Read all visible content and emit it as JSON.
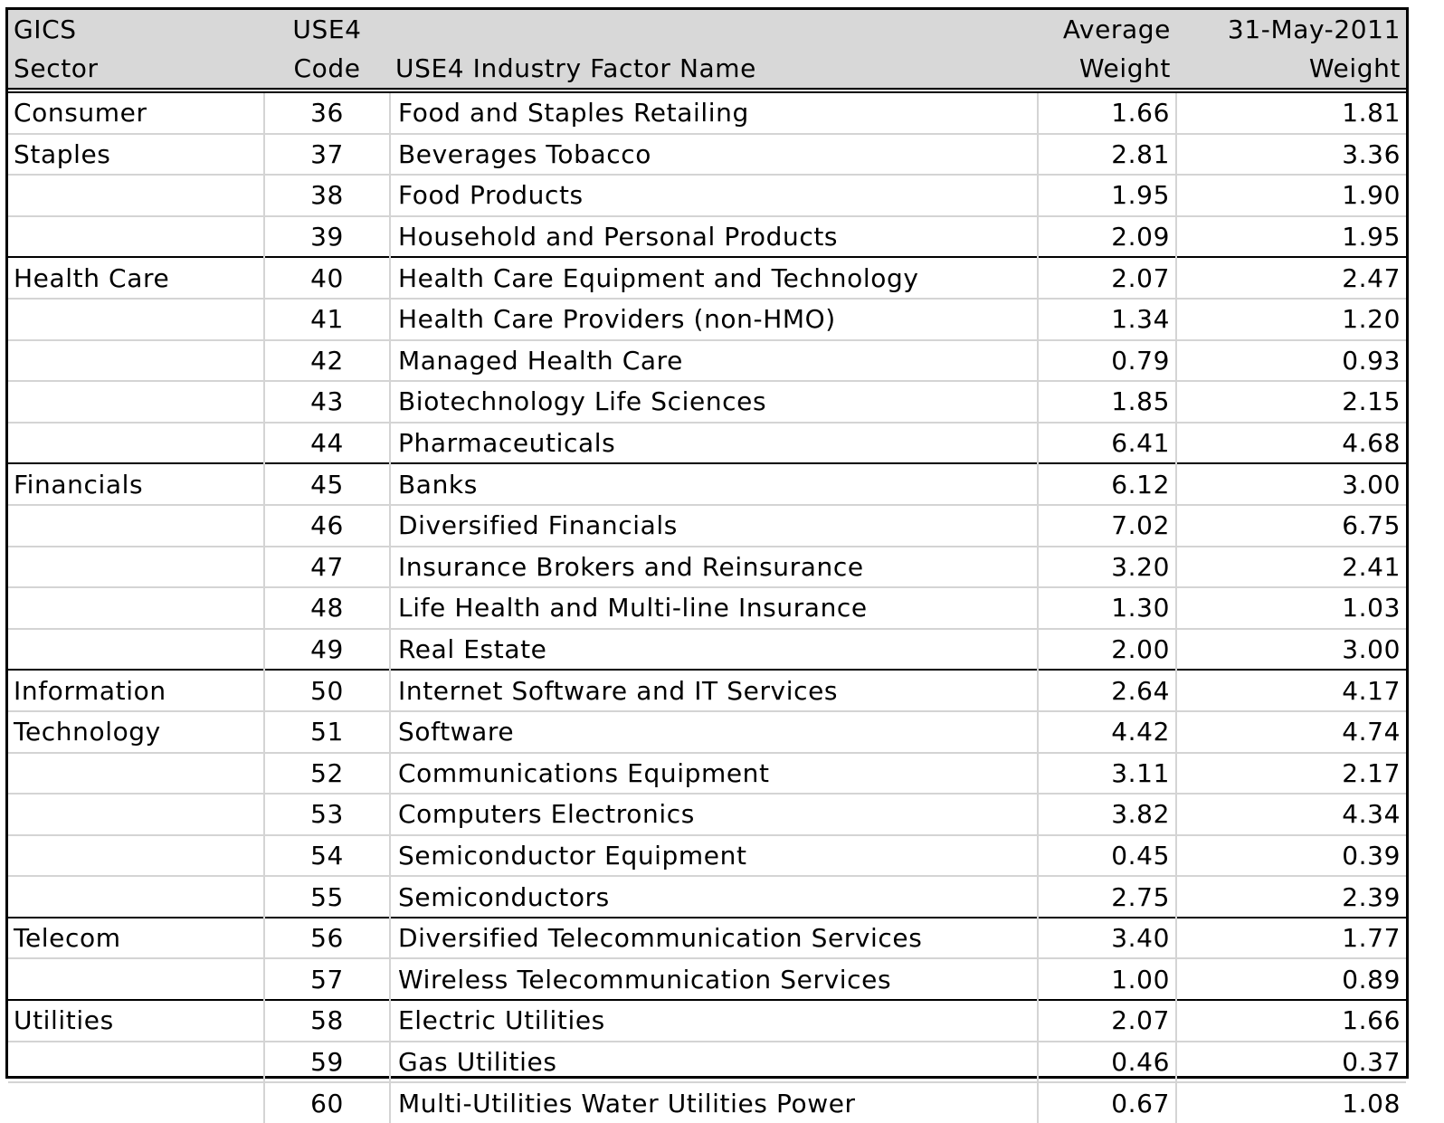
{
  "header": {
    "row1": {
      "sector": "GICS",
      "code": "USE4",
      "name": "",
      "avg": "Average",
      "date": "31-May-2011"
    },
    "row2": {
      "sector": "Sector",
      "code": "Code",
      "name": "USE4 Industry Factor Name",
      "avg": "Weight",
      "date": "Weight"
    }
  },
  "rows": [
    {
      "sector": "Consumer",
      "code": "36",
      "name": "Food and Staples Retailing",
      "avg": "1.66",
      "date": "1.81",
      "group_start": true
    },
    {
      "sector": "Staples",
      "code": "37",
      "name": "Beverages Tobacco",
      "avg": "2.81",
      "date": "3.36"
    },
    {
      "sector": "",
      "code": "38",
      "name": "Food Products",
      "avg": "1.95",
      "date": "1.90"
    },
    {
      "sector": "",
      "code": "39",
      "name": "Household and Personal Products",
      "avg": "2.09",
      "date": "1.95"
    },
    {
      "sector": "Health Care",
      "code": "40",
      "name": "Health Care Equipment and Technology",
      "avg": "2.07",
      "date": "2.47",
      "group_start": true
    },
    {
      "sector": "",
      "code": "41",
      "name": "Health Care Providers (non-HMO)",
      "avg": "1.34",
      "date": "1.20"
    },
    {
      "sector": "",
      "code": "42",
      "name": "Managed Health Care",
      "avg": "0.79",
      "date": "0.93"
    },
    {
      "sector": "",
      "code": "43",
      "name": "Biotechnology Life Sciences",
      "avg": "1.85",
      "date": "2.15"
    },
    {
      "sector": "",
      "code": "44",
      "name": "Pharmaceuticals",
      "avg": "6.41",
      "date": "4.68"
    },
    {
      "sector": "Financials",
      "code": "45",
      "name": "Banks",
      "avg": "6.12",
      "date": "3.00",
      "group_start": true
    },
    {
      "sector": "",
      "code": "46",
      "name": "Diversified Financials",
      "avg": "7.02",
      "date": "6.75"
    },
    {
      "sector": "",
      "code": "47",
      "name": "Insurance Brokers and Reinsurance",
      "avg": "3.20",
      "date": "2.41"
    },
    {
      "sector": "",
      "code": "48",
      "name": "Life Health and Multi-line Insurance",
      "avg": "1.30",
      "date": "1.03"
    },
    {
      "sector": "",
      "code": "49",
      "name": "Real Estate",
      "avg": "2.00",
      "date": "3.00"
    },
    {
      "sector": "Information",
      "code": "50",
      "name": "Internet Software and IT Services",
      "avg": "2.64",
      "date": "4.17",
      "group_start": true
    },
    {
      "sector": "Technology",
      "code": "51",
      "name": "Software",
      "avg": "4.42",
      "date": "4.74"
    },
    {
      "sector": "",
      "code": "52",
      "name": "Communications Equipment",
      "avg": "3.11",
      "date": "2.17"
    },
    {
      "sector": "",
      "code": "53",
      "name": "Computers Electronics",
      "avg": "3.82",
      "date": "4.34"
    },
    {
      "sector": "",
      "code": "54",
      "name": "Semiconductor Equipment",
      "avg": "0.45",
      "date": "0.39"
    },
    {
      "sector": "",
      "code": "55",
      "name": "Semiconductors",
      "avg": "2.75",
      "date": "2.39"
    },
    {
      "sector": "Telecom",
      "code": "56",
      "name": "Diversified Telecommunication Services",
      "avg": "3.40",
      "date": "1.77",
      "group_start": true
    },
    {
      "sector": "",
      "code": "57",
      "name": "Wireless Telecommunication Services",
      "avg": "1.00",
      "date": "0.89"
    },
    {
      "sector": "Utilities",
      "code": "58",
      "name": "Electric Utilities",
      "avg": "2.07",
      "date": "1.66",
      "group_start": true
    },
    {
      "sector": "",
      "code": "59",
      "name": "Gas Utilities",
      "avg": "0.46",
      "date": "0.37"
    },
    {
      "sector": "",
      "code": "60",
      "name": "Multi-Utilities Water Utilities Power",
      "avg": "0.67",
      "date": "1.08"
    }
  ]
}
